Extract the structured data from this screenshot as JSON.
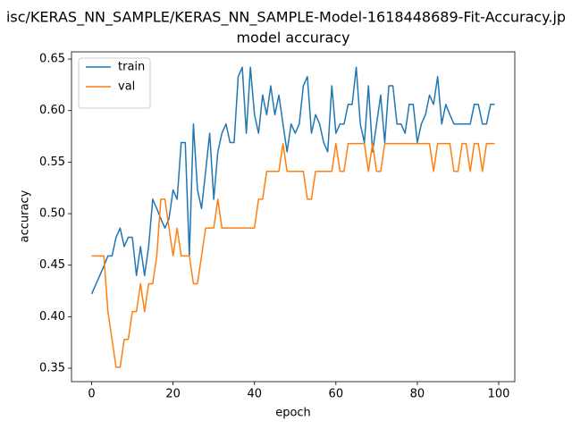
{
  "chart_data": {
    "type": "line",
    "title": "isc/KERAS_NN_SAMPLE/KERAS_NN_SAMPLE-Model-1618448689-Fit-Accuracy.jp",
    "subtitle": "model accuracy",
    "x_label": "epoch",
    "y_label": "accuracy",
    "x": [
      0,
      1,
      2,
      3,
      4,
      5,
      6,
      7,
      8,
      9,
      10,
      11,
      12,
      13,
      14,
      15,
      16,
      17,
      18,
      19,
      20,
      21,
      22,
      23,
      24,
      25,
      26,
      27,
      28,
      29,
      30,
      31,
      32,
      33,
      34,
      35,
      36,
      37,
      38,
      39,
      40,
      41,
      42,
      43,
      44,
      45,
      46,
      47,
      48,
      49,
      50,
      51,
      52,
      53,
      54,
      55,
      56,
      57,
      58,
      59,
      60,
      61,
      62,
      63,
      64,
      65,
      66,
      67,
      68,
      69,
      70,
      71,
      72,
      73,
      74,
      75,
      76,
      77,
      78,
      79,
      80,
      81,
      82,
      83,
      84,
      85,
      86,
      87,
      88,
      89,
      90,
      91,
      92,
      93,
      94,
      95,
      96,
      97,
      98,
      99
    ],
    "series": [
      {
        "name": "train",
        "color": "#1f77b4",
        "values": [
          0.422,
          0.431,
          0.44,
          0.449,
          0.459,
          0.459,
          0.477,
          0.486,
          0.468,
          0.477,
          0.477,
          0.44,
          0.468,
          0.44,
          0.468,
          0.514,
          0.505,
          0.495,
          0.486,
          0.495,
          0.523,
          0.514,
          0.569,
          0.569,
          0.459,
          0.587,
          0.523,
          0.505,
          0.541,
          0.578,
          0.514,
          0.56,
          0.578,
          0.587,
          0.569,
          0.569,
          0.633,
          0.642,
          0.578,
          0.642,
          0.596,
          0.578,
          0.615,
          0.596,
          0.624,
          0.596,
          0.615,
          0.587,
          0.56,
          0.587,
          0.578,
          0.587,
          0.624,
          0.633,
          0.578,
          0.596,
          0.587,
          0.569,
          0.56,
          0.624,
          0.578,
          0.587,
          0.587,
          0.606,
          0.606,
          0.642,
          0.587,
          0.569,
          0.624,
          0.56,
          0.587,
          0.615,
          0.569,
          0.624,
          0.624,
          0.587,
          0.587,
          0.578,
          0.606,
          0.606,
          0.569,
          0.587,
          0.596,
          0.615,
          0.606,
          0.633,
          0.587,
          0.606,
          0.596,
          0.587,
          0.587,
          0.587,
          0.587,
          0.587,
          0.606,
          0.606,
          0.587,
          0.587,
          0.606,
          0.606
        ]
      },
      {
        "name": "val",
        "color": "#ff7f0e",
        "values": [
          0.459,
          0.459,
          0.459,
          0.459,
          0.405,
          0.378,
          0.351,
          0.351,
          0.378,
          0.378,
          0.405,
          0.405,
          0.432,
          0.405,
          0.432,
          0.432,
          0.459,
          0.514,
          0.514,
          0.486,
          0.459,
          0.486,
          0.459,
          0.459,
          0.459,
          0.432,
          0.432,
          0.459,
          0.486,
          0.486,
          0.486,
          0.514,
          0.486,
          0.486,
          0.486,
          0.486,
          0.486,
          0.486,
          0.486,
          0.486,
          0.486,
          0.514,
          0.514,
          0.541,
          0.541,
          0.541,
          0.541,
          0.568,
          0.541,
          0.541,
          0.541,
          0.541,
          0.541,
          0.514,
          0.514,
          0.541,
          0.541,
          0.541,
          0.541,
          0.541,
          0.568,
          0.541,
          0.541,
          0.568,
          0.568,
          0.568,
          0.568,
          0.568,
          0.541,
          0.568,
          0.541,
          0.541,
          0.568,
          0.568,
          0.568,
          0.568,
          0.568,
          0.568,
          0.568,
          0.568,
          0.568,
          0.568,
          0.568,
          0.568,
          0.541,
          0.568,
          0.568,
          0.568,
          0.568,
          0.541,
          0.541,
          0.568,
          0.568,
          0.541,
          0.568,
          0.568,
          0.541,
          0.568,
          0.568,
          0.568
        ]
      }
    ],
    "xlim": [
      -4.95,
      103.95
    ],
    "xticks": [
      0,
      20,
      40,
      60,
      80,
      100
    ],
    "ylim": [
      0.337,
      0.657
    ],
    "yticks": [
      0.35,
      {
        "value": 0.4,
        "label": "0.40"
      },
      0.45,
      {
        "value": 0.5,
        "label": "0.50"
      },
      0.55,
      {
        "value": 0.6,
        "label": "0.60"
      },
      0.65
    ],
    "grid": false,
    "legend": "upper left"
  }
}
